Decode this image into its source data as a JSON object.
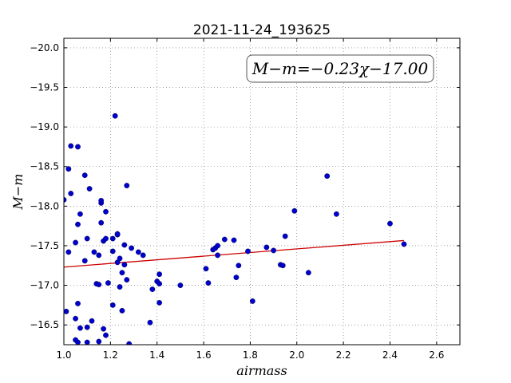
{
  "chart_data": {
    "type": "scatter",
    "title": "2021-11-24_193625",
    "xlabel": "airmass",
    "ylabel": "M−m",
    "xlim": [
      1.0,
      2.7
    ],
    "ylim": [
      -20.12,
      -16.25
    ],
    "y_inverted": true,
    "grid": true,
    "x_ticks": [
      "1.0",
      "1.2",
      "1.4",
      "1.6",
      "1.8",
      "2.0",
      "2.2",
      "2.4",
      "2.6"
    ],
    "y_ticks": [
      "-16.5",
      "-17.0",
      "-17.5",
      "-18.0",
      "-18.5",
      "-19.0",
      "-19.5",
      "-20.0"
    ],
    "annotation": "M−m=−0.23χ−17.00",
    "point_color": "#0000cc",
    "fit_color": "#cc0000",
    "fit": {
      "slope": -0.23,
      "intercept": -17.0,
      "x_range": [
        1.0,
        2.46
      ]
    },
    "points": [
      {
        "x": 1.0,
        "y": -18.08
      },
      {
        "x": 1.01,
        "y": -16.67
      },
      {
        "x": 1.02,
        "y": -17.42
      },
      {
        "x": 1.02,
        "y": -18.47
      },
      {
        "x": 1.03,
        "y": -18.76
      },
      {
        "x": 1.03,
        "y": -18.16
      },
      {
        "x": 1.05,
        "y": -16.31
      },
      {
        "x": 1.05,
        "y": -16.58
      },
      {
        "x": 1.05,
        "y": -17.54
      },
      {
        "x": 1.06,
        "y": -16.77
      },
      {
        "x": 1.06,
        "y": -17.77
      },
      {
        "x": 1.06,
        "y": -18.75
      },
      {
        "x": 1.06,
        "y": -16.28
      },
      {
        "x": 1.07,
        "y": -16.46
      },
      {
        "x": 1.07,
        "y": -17.9
      },
      {
        "x": 1.09,
        "y": -17.31
      },
      {
        "x": 1.09,
        "y": -18.39
      },
      {
        "x": 1.1,
        "y": -16.28
      },
      {
        "x": 1.1,
        "y": -16.47
      },
      {
        "x": 1.1,
        "y": -17.59
      },
      {
        "x": 1.11,
        "y": -18.22
      },
      {
        "x": 1.12,
        "y": -16.55
      },
      {
        "x": 1.13,
        "y": -17.42
      },
      {
        "x": 1.14,
        "y": -17.02
      },
      {
        "x": 1.15,
        "y": -17.38
      },
      {
        "x": 1.15,
        "y": -16.29
      },
      {
        "x": 1.15,
        "y": -17.01
      },
      {
        "x": 1.16,
        "y": -18.04
      },
      {
        "x": 1.16,
        "y": -18.07
      },
      {
        "x": 1.16,
        "y": -17.79
      },
      {
        "x": 1.17,
        "y": -17.56
      },
      {
        "x": 1.17,
        "y": -16.45
      },
      {
        "x": 1.18,
        "y": -16.37
      },
      {
        "x": 1.18,
        "y": -17.59
      },
      {
        "x": 1.18,
        "y": -17.93
      },
      {
        "x": 1.19,
        "y": -17.03
      },
      {
        "x": 1.21,
        "y": -16.75
      },
      {
        "x": 1.21,
        "y": -17.59
      },
      {
        "x": 1.21,
        "y": -17.43
      },
      {
        "x": 1.22,
        "y": -19.14
      },
      {
        "x": 1.23,
        "y": -17.64
      },
      {
        "x": 1.23,
        "y": -17.65
      },
      {
        "x": 1.23,
        "y": -17.29
      },
      {
        "x": 1.24,
        "y": -17.34
      },
      {
        "x": 1.24,
        "y": -16.98
      },
      {
        "x": 1.25,
        "y": -17.16
      },
      {
        "x": 1.25,
        "y": -16.68
      },
      {
        "x": 1.26,
        "y": -17.26
      },
      {
        "x": 1.26,
        "y": -17.51
      },
      {
        "x": 1.27,
        "y": -17.07
      },
      {
        "x": 1.27,
        "y": -18.26
      },
      {
        "x": 1.28,
        "y": -16.26
      },
      {
        "x": 1.29,
        "y": -17.47
      },
      {
        "x": 1.32,
        "y": -17.42
      },
      {
        "x": 1.34,
        "y": -17.38
      },
      {
        "x": 1.37,
        "y": -16.53
      },
      {
        "x": 1.38,
        "y": -16.95
      },
      {
        "x": 1.4,
        "y": -17.05
      },
      {
        "x": 1.41,
        "y": -16.78
      },
      {
        "x": 1.41,
        "y": -17.14
      },
      {
        "x": 1.41,
        "y": -17.02
      },
      {
        "x": 1.5,
        "y": -17.0
      },
      {
        "x": 1.61,
        "y": -17.21
      },
      {
        "x": 1.62,
        "y": -17.03
      },
      {
        "x": 1.64,
        "y": -17.45
      },
      {
        "x": 1.65,
        "y": -17.47
      },
      {
        "x": 1.66,
        "y": -17.38
      },
      {
        "x": 1.66,
        "y": -17.5
      },
      {
        "x": 1.69,
        "y": -17.58
      },
      {
        "x": 1.73,
        "y": -17.57
      },
      {
        "x": 1.74,
        "y": -17.1
      },
      {
        "x": 1.75,
        "y": -17.25
      },
      {
        "x": 1.79,
        "y": -17.43
      },
      {
        "x": 1.81,
        "y": -16.8
      },
      {
        "x": 1.87,
        "y": -17.48
      },
      {
        "x": 1.9,
        "y": -17.44
      },
      {
        "x": 1.93,
        "y": -17.26
      },
      {
        "x": 1.94,
        "y": -17.25
      },
      {
        "x": 1.95,
        "y": -17.62
      },
      {
        "x": 1.99,
        "y": -17.94
      },
      {
        "x": 2.05,
        "y": -17.16
      },
      {
        "x": 2.13,
        "y": -18.38
      },
      {
        "x": 2.17,
        "y": -17.9
      },
      {
        "x": 2.4,
        "y": -17.78
      },
      {
        "x": 2.46,
        "y": -17.52
      }
    ]
  }
}
